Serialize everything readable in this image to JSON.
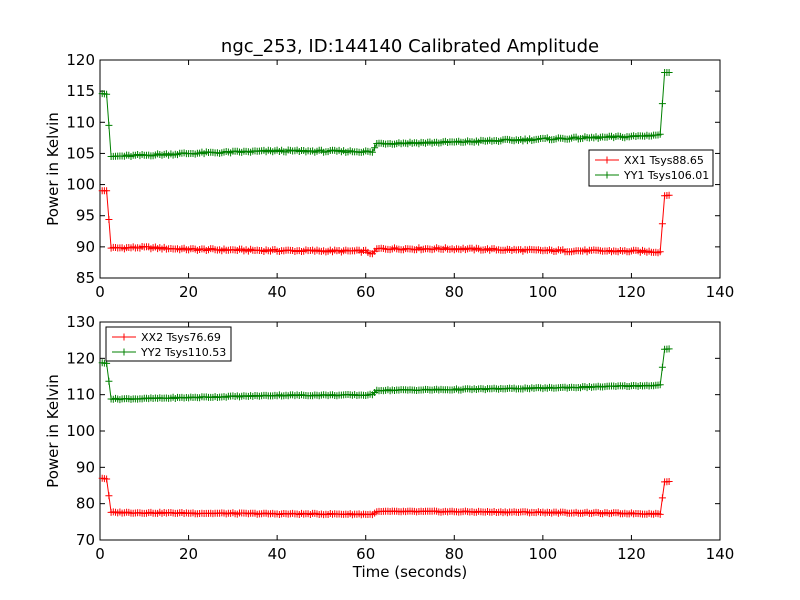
{
  "title": "ngc_253, ID:144140 Calibrated Amplitude",
  "colors": {
    "xx": "#ff0000",
    "yy": "#008000"
  },
  "chart_data": [
    {
      "type": "line",
      "title": "ngc_253, ID:144140 Calibrated Amplitude",
      "xlabel": "",
      "ylabel": "Power in Kelvin",
      "xlim": [
        0,
        140
      ],
      "ylim": [
        85,
        120
      ],
      "x_ticks": [
        "0",
        "20",
        "40",
        "60",
        "80",
        "100",
        "120",
        "140"
      ],
      "y_ticks": [
        "85",
        "90",
        "95",
        "100",
        "105",
        "110",
        "115",
        "120"
      ],
      "legend_position": "center-right",
      "series": [
        {
          "name": "XX1 Tsys88.65",
          "color": "#ff0000",
          "marker": "+",
          "profile": [
            [
              0.5,
              99.0
            ],
            [
              1.5,
              99.0
            ],
            [
              2.5,
              89.8
            ],
            [
              10,
              89.9
            ],
            [
              20,
              89.6
            ],
            [
              40,
              89.4
            ],
            [
              60,
              89.3
            ],
            [
              61.5,
              88.9
            ],
            [
              62.5,
              89.7
            ],
            [
              80,
              89.7
            ],
            [
              100,
              89.4
            ],
            [
              120,
              89.3
            ],
            [
              126.5,
              89.2
            ],
            [
              127.5,
              98.2
            ],
            [
              128.5,
              98.3
            ]
          ]
        },
        {
          "name": "YY1 Tsys106.01",
          "color": "#008000",
          "marker": "+",
          "profile": [
            [
              0.5,
              114.6
            ],
            [
              1.5,
              114.5
            ],
            [
              2.5,
              104.5
            ],
            [
              10,
              104.7
            ],
            [
              20,
              105.0
            ],
            [
              40,
              105.4
            ],
            [
              60,
              105.3
            ],
            [
              61.5,
              105.2
            ],
            [
              62.5,
              106.6
            ],
            [
              80,
              106.8
            ],
            [
              100,
              107.3
            ],
            [
              120,
              107.7
            ],
            [
              126.5,
              108.0
            ],
            [
              127.5,
              118.0
            ],
            [
              128.5,
              118.0
            ]
          ]
        }
      ]
    },
    {
      "type": "line",
      "xlabel": "Time (seconds)",
      "ylabel": "Power in Kelvin",
      "xlim": [
        0,
        140
      ],
      "ylim": [
        70,
        130
      ],
      "x_ticks": [
        "0",
        "20",
        "40",
        "60",
        "80",
        "100",
        "120",
        "140"
      ],
      "y_ticks": [
        "70",
        "80",
        "90",
        "100",
        "110",
        "120",
        "130"
      ],
      "legend_position": "upper-left",
      "series": [
        {
          "name": "XX2 Tsys76.69",
          "color": "#ff0000",
          "marker": "+",
          "profile": [
            [
              0.5,
              87.0
            ],
            [
              1.5,
              86.8
            ],
            [
              2.5,
              77.6
            ],
            [
              10,
              77.5
            ],
            [
              20,
              77.4
            ],
            [
              40,
              77.2
            ],
            [
              60,
              77.1
            ],
            [
              61.5,
              77.0
            ],
            [
              62.5,
              77.8
            ],
            [
              80,
              77.8
            ],
            [
              100,
              77.6
            ],
            [
              120,
              77.3
            ],
            [
              126.5,
              77.2
            ],
            [
              127.5,
              86.0
            ],
            [
              128.5,
              86.1
            ]
          ]
        },
        {
          "name": "YY2 Tsys110.53",
          "color": "#008000",
          "marker": "+",
          "profile": [
            [
              0.5,
              118.8
            ],
            [
              1.5,
              118.6
            ],
            [
              2.5,
              108.8
            ],
            [
              10,
              108.9
            ],
            [
              20,
              109.2
            ],
            [
              40,
              109.8
            ],
            [
              60,
              109.9
            ],
            [
              61.5,
              110.0
            ],
            [
              62.5,
              111.2
            ],
            [
              80,
              111.4
            ],
            [
              100,
              111.8
            ],
            [
              120,
              112.4
            ],
            [
              126.5,
              112.6
            ],
            [
              127.5,
              122.5
            ],
            [
              128.5,
              122.6
            ]
          ]
        }
      ]
    }
  ]
}
